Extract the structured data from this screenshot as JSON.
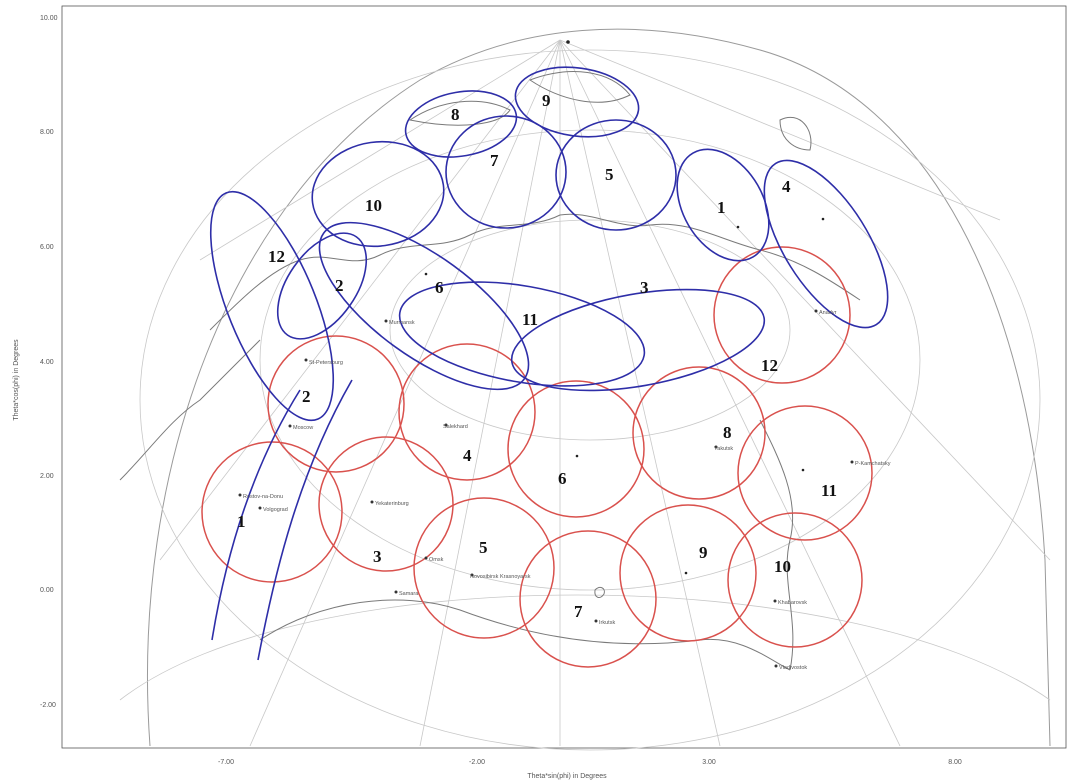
{
  "axes": {
    "x_label": "Theta*sin(phi) in Degrees",
    "y_label": "Theta*cos(phi) in Degrees",
    "x_ticks": [
      "-7.00",
      "-2.00",
      "3.00",
      "8.00"
    ],
    "y_ticks": [
      "10.00",
      "8.00",
      "6.00",
      "4.00",
      "2.00",
      "0.00",
      "-2.00"
    ]
  },
  "blue_beams": [
    {
      "id": "8",
      "label": "8"
    },
    {
      "id": "9",
      "label": "9"
    },
    {
      "id": "7",
      "label": "7"
    },
    {
      "id": "5",
      "label": "5"
    },
    {
      "id": "10",
      "label": "10"
    },
    {
      "id": "1",
      "label": "1"
    },
    {
      "id": "4",
      "label": "4"
    },
    {
      "id": "12",
      "label": "12"
    },
    {
      "id": "2",
      "label": "2"
    },
    {
      "id": "6",
      "label": "6"
    },
    {
      "id": "11",
      "label": "11"
    },
    {
      "id": "3",
      "label": "3"
    }
  ],
  "red_beams": [
    {
      "id": "12",
      "label": "12"
    },
    {
      "id": "2",
      "label": "2"
    },
    {
      "id": "4",
      "label": "4"
    },
    {
      "id": "6",
      "label": "6"
    },
    {
      "id": "8",
      "label": "8"
    },
    {
      "id": "11",
      "label": "11"
    },
    {
      "id": "1",
      "label": "1"
    },
    {
      "id": "3",
      "label": "3"
    },
    {
      "id": "5",
      "label": "5"
    },
    {
      "id": "7",
      "label": "7"
    },
    {
      "id": "9",
      "label": "9"
    },
    {
      "id": "10",
      "label": "10"
    }
  ],
  "cities": [
    {
      "name": "St-Petersburg"
    },
    {
      "name": "Moscow"
    },
    {
      "name": "Rostov-na-Donu"
    },
    {
      "name": "Volgograd"
    },
    {
      "name": "Yekaterinburg"
    },
    {
      "name": "Samara"
    },
    {
      "name": "Omsk"
    },
    {
      "name": "Novosibirsk Krasnoyarsk"
    },
    {
      "name": "Irkutsk"
    },
    {
      "name": "Salekhard"
    },
    {
      "name": "Murmansk"
    },
    {
      "name": "Yakutsk"
    },
    {
      "name": "Khabarovsk"
    },
    {
      "name": "Vladivostok"
    },
    {
      "name": "P-Kamchatsky"
    },
    {
      "name": "Anadyr"
    }
  ],
  "colors": {
    "blue_beam": "#2e2ea8",
    "red_beam": "#d9514d",
    "coastline": "#7a7a7a",
    "grid": "#c8c8c8",
    "frame": "#555555"
  }
}
